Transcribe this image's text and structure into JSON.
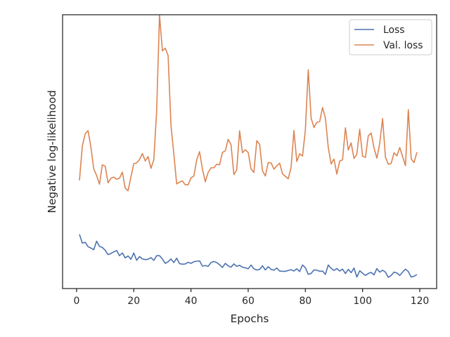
{
  "chart_data": {
    "type": "line",
    "title": "",
    "xlabel": "Epochs",
    "ylabel": "Negative log-likelihood",
    "xlim": [
      -4.9,
      125.9
    ],
    "ylim": [
      0.0,
      1.0
    ],
    "xticks": [
      0,
      20,
      40,
      60,
      80,
      100,
      120
    ],
    "yticks_visible": false,
    "grid": false,
    "legend_position": "top-right",
    "series": [
      {
        "name": "Loss",
        "color": "#4c72b0",
        "x": [
          1,
          2,
          3,
          4,
          5,
          6,
          7,
          8,
          9,
          10,
          11,
          12,
          13,
          14,
          15,
          16,
          17,
          18,
          19,
          20,
          21,
          22,
          23,
          24,
          25,
          26,
          27,
          28,
          29,
          30,
          31,
          32,
          33,
          34,
          35,
          36,
          37,
          38,
          39,
          40,
          41,
          42,
          43,
          44,
          45,
          46,
          47,
          48,
          49,
          50,
          51,
          52,
          53,
          54,
          55,
          56,
          57,
          58,
          59,
          60,
          61,
          62,
          63,
          64,
          65,
          66,
          67,
          68,
          69,
          70,
          71,
          72,
          73,
          74,
          75,
          76,
          77,
          78,
          79,
          80,
          81,
          82,
          83,
          84,
          85,
          86,
          87,
          88,
          89,
          90,
          91,
          92,
          93,
          94,
          95,
          96,
          97,
          98,
          99,
          100,
          101,
          102,
          103,
          104,
          105,
          106,
          107,
          108,
          109,
          110,
          111,
          112,
          113,
          114,
          115,
          116,
          117,
          118,
          119
        ],
        "values": [
          0.198,
          0.166,
          0.169,
          0.153,
          0.148,
          0.142,
          0.173,
          0.154,
          0.15,
          0.14,
          0.124,
          0.128,
          0.134,
          0.139,
          0.12,
          0.13,
          0.112,
          0.119,
          0.107,
          0.13,
          0.103,
          0.117,
          0.108,
          0.106,
          0.107,
          0.113,
          0.103,
          0.12,
          0.12,
          0.108,
          0.092,
          0.098,
          0.108,
          0.095,
          0.111,
          0.091,
          0.089,
          0.09,
          0.096,
          0.092,
          0.098,
          0.1,
          0.101,
          0.082,
          0.084,
          0.081,
          0.095,
          0.099,
          0.095,
          0.087,
          0.077,
          0.092,
          0.083,
          0.078,
          0.09,
          0.081,
          0.085,
          0.078,
          0.076,
          0.072,
          0.086,
          0.072,
          0.068,
          0.07,
          0.083,
          0.068,
          0.08,
          0.07,
          0.067,
          0.075,
          0.064,
          0.063,
          0.063,
          0.066,
          0.069,
          0.064,
          0.072,
          0.062,
          0.086,
          0.076,
          0.052,
          0.055,
          0.068,
          0.067,
          0.063,
          0.064,
          0.052,
          0.086,
          0.074,
          0.066,
          0.073,
          0.064,
          0.071,
          0.055,
          0.07,
          0.058,
          0.075,
          0.042,
          0.065,
          0.056,
          0.048,
          0.055,
          0.059,
          0.05,
          0.073,
          0.06,
          0.067,
          0.06,
          0.041,
          0.048,
          0.06,
          0.057,
          0.048,
          0.06,
          0.071,
          0.062,
          0.042,
          0.045,
          0.051
        ]
      },
      {
        "name": "Val. loss",
        "color": "#dd8452",
        "x": [
          1,
          2,
          3,
          4,
          5,
          6,
          7,
          8,
          9,
          10,
          11,
          12,
          13,
          14,
          15,
          16,
          17,
          18,
          19,
          20,
          21,
          22,
          23,
          24,
          25,
          26,
          27,
          28,
          29,
          30,
          31,
          32,
          33,
          34,
          35,
          36,
          37,
          38,
          39,
          40,
          41,
          42,
          43,
          44,
          45,
          46,
          47,
          48,
          49,
          50,
          51,
          52,
          53,
          54,
          55,
          56,
          57,
          58,
          59,
          60,
          61,
          62,
          63,
          64,
          65,
          66,
          67,
          68,
          69,
          70,
          71,
          72,
          73,
          74,
          75,
          76,
          77,
          78,
          79,
          80,
          81,
          82,
          83,
          84,
          85,
          86,
          87,
          88,
          89,
          90,
          91,
          92,
          93,
          94,
          95,
          96,
          97,
          98,
          99,
          100,
          101,
          102,
          103,
          104,
          105,
          106,
          107,
          108,
          109,
          110,
          111,
          112,
          113,
          114,
          115,
          116,
          117,
          118,
          119
        ],
        "values": [
          0.395,
          0.52,
          0.565,
          0.577,
          0.517,
          0.437,
          0.413,
          0.381,
          0.452,
          0.447,
          0.386,
          0.403,
          0.407,
          0.399,
          0.403,
          0.425,
          0.367,
          0.357,
          0.408,
          0.456,
          0.459,
          0.471,
          0.493,
          0.466,
          0.482,
          0.439,
          0.47,
          0.65,
          0.999,
          0.868,
          0.878,
          0.851,
          0.596,
          0.492,
          0.382,
          0.389,
          0.393,
          0.379,
          0.379,
          0.404,
          0.411,
          0.47,
          0.5,
          0.437,
          0.39,
          0.424,
          0.441,
          0.441,
          0.454,
          0.452,
          0.497,
          0.503,
          0.545,
          0.526,
          0.416,
          0.434,
          0.576,
          0.496,
          0.507,
          0.497,
          0.437,
          0.424,
          0.54,
          0.527,
          0.43,
          0.411,
          0.46,
          0.459,
          0.436,
          0.448,
          0.458,
          0.419,
          0.41,
          0.401,
          0.442,
          0.577,
          0.464,
          0.492,
          0.484,
          0.579,
          0.799,
          0.623,
          0.588,
          0.607,
          0.61,
          0.661,
          0.623,
          0.516,
          0.455,
          0.473,
          0.418,
          0.466,
          0.47,
          0.587,
          0.506,
          0.532,
          0.475,
          0.491,
          0.582,
          0.483,
          0.479,
          0.558,
          0.568,
          0.514,
          0.476,
          0.53,
          0.621,
          0.48,
          0.454,
          0.457,
          0.496,
          0.485,
          0.515,
          0.482,
          0.449,
          0.653,
          0.474,
          0.46,
          0.498
        ]
      }
    ]
  }
}
